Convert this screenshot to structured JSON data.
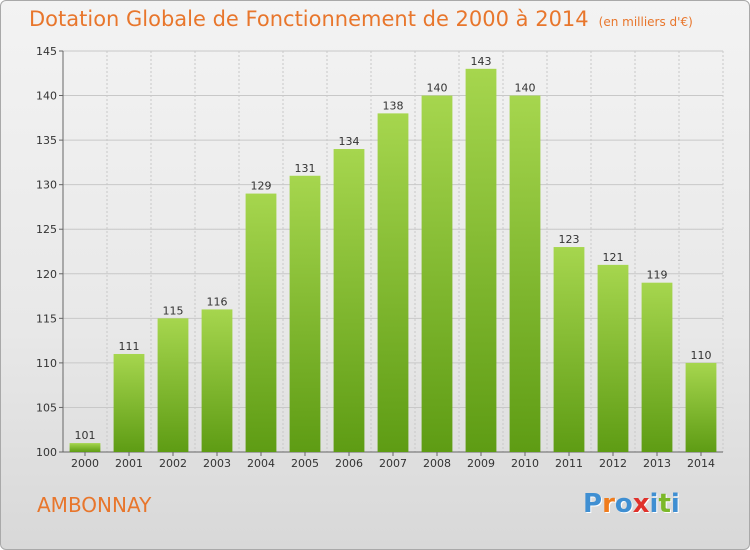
{
  "header": {
    "title": "Dotation Globale de Fonctionnement de 2000 à 2014",
    "subtitle": "(en milliers d'€)"
  },
  "footer": {
    "commune": "AMBONNAY",
    "logo_text": "Proxiti",
    "logo_colors": [
      "#3f8fd2",
      "#f07c1c",
      "#3f8fd2",
      "#e0312b",
      "#3f8fd2",
      "#7cb829",
      "#3f8fd2"
    ]
  },
  "colors": {
    "bar_top": "#a6d64e",
    "bar_bottom": "#5e9c14",
    "grid": "#c8c8c8",
    "title": "#e8762c"
  },
  "chart_data": {
    "type": "bar",
    "title": "Dotation Globale de Fonctionnement de 2000 à 2014",
    "subtitle": "(en milliers d'€)",
    "categories": [
      "2000",
      "2001",
      "2002",
      "2003",
      "2004",
      "2005",
      "2006",
      "2007",
      "2008",
      "2009",
      "2010",
      "2011",
      "2012",
      "2013",
      "2014"
    ],
    "values": [
      101,
      111,
      115,
      116,
      129,
      131,
      134,
      138,
      140,
      143,
      140,
      123,
      121,
      119,
      110
    ],
    "ylim": [
      100,
      145
    ],
    "yticks": [
      "100",
      "105",
      "110",
      "115",
      "120",
      "125",
      "130",
      "135",
      "140",
      "145"
    ],
    "grid": true,
    "xlabel": "",
    "ylabel": ""
  }
}
